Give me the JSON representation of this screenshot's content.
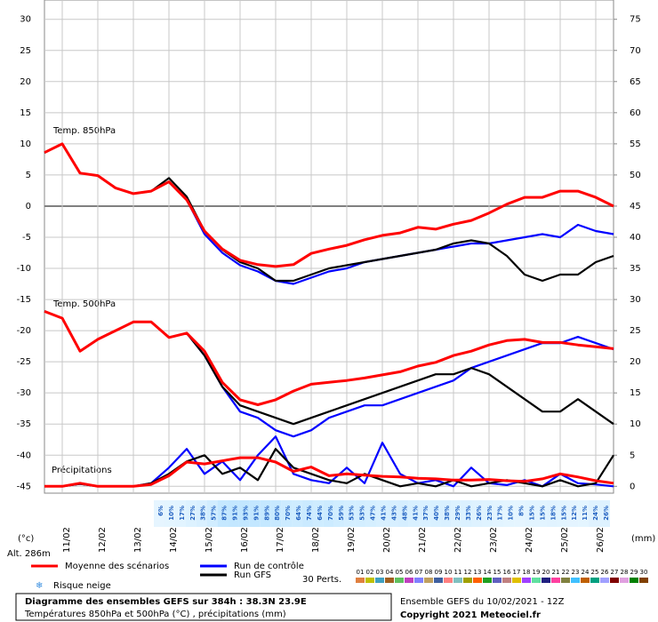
{
  "chart_data": {
    "type": "line",
    "title": "Diagramme des ensembles GEFS sur 384h : 38.3N 23.9E",
    "subtitle": "Températures 850hPa et 500hPa (°C) , précipitations (mm)",
    "ylabel": "(°c)",
    "y2label": "(mm)",
    "annotations": [
      "Temp. 850hPa",
      "Temp. 500hPa",
      "Précipitations",
      "Alt. 286m",
      "Ensemble GEFS du 10/02/2021 - 12Z",
      "Copyright 2021 Meteociel.fr"
    ],
    "x": [
      0,
      12,
      24,
      36,
      48,
      60,
      72,
      84,
      96,
      108,
      120,
      132,
      144,
      156,
      168,
      180,
      192,
      204,
      216,
      228,
      240,
      252,
      264,
      276,
      288,
      300,
      312,
      324,
      336,
      348,
      360,
      372,
      384
    ],
    "xlim": [
      0,
      384
    ],
    "xticks": [
      {
        "value": 12,
        "label": "11/02"
      },
      {
        "value": 36,
        "label": "12/02"
      },
      {
        "value": 60,
        "label": "13/02"
      },
      {
        "value": 84,
        "label": "14/02"
      },
      {
        "value": 108,
        "label": "15/02"
      },
      {
        "value": 132,
        "label": "16/02"
      },
      {
        "value": 156,
        "label": "17/02"
      },
      {
        "value": 180,
        "label": "18/02"
      },
      {
        "value": 204,
        "label": "19/02"
      },
      {
        "value": 228,
        "label": "20/02"
      },
      {
        "value": 252,
        "label": "21/02"
      },
      {
        "value": 276,
        "label": "22/02"
      },
      {
        "value": 300,
        "label": "23/02"
      },
      {
        "value": 324,
        "label": "24/02"
      },
      {
        "value": 348,
        "label": "25/02"
      },
      {
        "value": 372,
        "label": "26/02"
      }
    ],
    "ylim": [
      -46.1,
      33.1
    ],
    "yticks": [
      -45,
      -40,
      -35,
      -30,
      -25,
      -20,
      -15,
      -10,
      -5,
      0,
      5,
      10,
      15,
      20,
      25,
      30
    ],
    "y2lim": [
      -1.1,
      78.1
    ],
    "y2ticks": [
      0,
      5,
      10,
      15,
      20,
      25,
      30,
      35,
      40,
      45,
      50,
      55,
      60,
      65,
      70,
      75
    ],
    "grid": true,
    "hlines": [
      0
    ],
    "series": [
      {
        "name": "Moyenne des scénarios",
        "color": "#ff0000",
        "values": [
          8.6,
          10.0,
          5.3,
          4.9,
          2.9,
          2.0,
          2.4,
          3.9,
          1.0,
          -4.0,
          -6.9,
          -8.7,
          -9.4,
          -9.7,
          -9.4,
          -7.6,
          -6.9,
          -6.3,
          -5.4,
          -4.7,
          -4.3,
          -3.4,
          -3.7,
          -2.9,
          -2.3,
          -1.1,
          0.3,
          1.4,
          1.4,
          2.4,
          2.4,
          1.4,
          0.0
        ]
      },
      {
        "name": "Run de contrôle",
        "color": "#0000ff",
        "values": [
          8.6,
          10.0,
          5.3,
          4.9,
          2.9,
          2.0,
          2.4,
          3.9,
          1.0,
          -4.5,
          -7.5,
          -9.5,
          -10.5,
          -12,
          -12.5,
          -11.5,
          -10.5,
          -10,
          -9,
          -8.5,
          -8,
          -7.5,
          -7,
          -6.5,
          -6,
          -6,
          -5.5,
          -5,
          -4.5,
          -5,
          -3,
          -4,
          -4.5
        ]
      },
      {
        "name": "Run GFS",
        "color": "#000000",
        "values": [
          8.6,
          10.0,
          5.3,
          4.9,
          2.9,
          2.0,
          2.4,
          4.5,
          1.5,
          -4,
          -7,
          -9,
          -10,
          -12,
          -12,
          -11,
          -10,
          -9.5,
          -9,
          -8.5,
          -8,
          -7.5,
          -7,
          -6,
          -5.5,
          -6,
          -8,
          -11,
          -12,
          -11,
          -11,
          -9,
          -8
        ]
      },
      {
        "name": "Moyenne des scénarios",
        "color": "#ff0000",
        "values": [
          -16.9,
          -18,
          -23.3,
          -21.4,
          -20,
          -18.6,
          -18.6,
          -21.1,
          -20.4,
          -23.3,
          -28.3,
          -31.1,
          -31.9,
          -31.1,
          -29.7,
          -28.6,
          -28.3,
          -28,
          -27.6,
          -27.1,
          -26.6,
          -25.7,
          -25.1,
          -24,
          -23.3,
          -22.3,
          -21.6,
          -21.4,
          -21.9,
          -21.9,
          -22.3,
          -22.6,
          -22.9
        ]
      },
      {
        "name": "Run de contrôle",
        "color": "#0000ff",
        "values": [
          -16.9,
          -18,
          -23.3,
          -21.4,
          -20,
          -18.6,
          -18.6,
          -21.1,
          -20.4,
          -24,
          -29,
          -33,
          -34,
          -36,
          -37,
          -36,
          -34,
          -33,
          -32,
          -32,
          -31,
          -30,
          -29,
          -28,
          -26,
          -25,
          -24,
          -23,
          -22,
          -22,
          -21,
          -22,
          -23
        ]
      },
      {
        "name": "Run GFS",
        "color": "#000000",
        "values": [
          -16.9,
          -18,
          -23.3,
          -21.4,
          -20,
          -18.6,
          -18.6,
          -21.1,
          -20.4,
          -24,
          -29,
          -32,
          -33,
          -34,
          -35,
          -34,
          -33,
          -32,
          -31,
          -30,
          -29,
          -28,
          -27,
          -27,
          -26,
          -27,
          -29,
          -31,
          -33,
          -33,
          -31,
          -33,
          -35
        ]
      },
      {
        "name": "Moyenne des scénarios",
        "color": "#ff0000",
        "axis": "y2",
        "values": [
          0,
          0,
          0.5,
          0,
          0,
          0,
          0.3,
          1.7,
          3.9,
          3.6,
          4.1,
          4.6,
          4.6,
          3.9,
          2.4,
          3.1,
          1.7,
          2.0,
          1.8,
          1.6,
          1.5,
          1.3,
          1.2,
          1.0,
          1.0,
          1.1,
          0.9,
          0.8,
          1.2,
          2.0,
          1.5,
          0.9,
          0.5
        ]
      },
      {
        "name": "Run de contrôle",
        "color": "#0000ff",
        "axis": "y2",
        "values": [
          0,
          0,
          0.4,
          0,
          0,
          0,
          0.5,
          3,
          6,
          2,
          4,
          1,
          5,
          8,
          2,
          1,
          0.5,
          3,
          0.5,
          7,
          2,
          0.5,
          1,
          0,
          3,
          0.5,
          0.2,
          1,
          0,
          2,
          0.5,
          0.3,
          0
        ]
      },
      {
        "name": "Run GFS",
        "color": "#000000",
        "axis": "y2",
        "values": [
          0,
          0,
          0.4,
          0,
          0,
          0,
          0.5,
          2,
          4,
          5,
          2,
          3,
          1,
          6,
          3,
          2,
          1,
          0.5,
          2,
          1,
          0,
          0.5,
          0,
          1,
          0,
          0.5,
          1,
          0.5,
          0,
          1,
          0,
          0.5,
          5
        ]
      }
    ],
    "snow_risk": {
      "name": "Risque neige",
      "color": "#bfe6ff",
      "values": [
        6,
        10,
        17,
        27,
        38,
        57,
        87,
        91,
        93,
        91,
        89,
        80,
        70,
        64,
        74,
        64,
        70,
        59,
        53,
        53,
        47,
        41,
        43,
        48,
        41,
        37,
        40,
        38,
        29,
        33,
        26,
        23,
        17,
        10,
        8,
        15,
        15,
        18,
        15,
        12,
        11,
        24,
        26
      ],
      "value_labels": [
        "6%",
        "10%",
        "17%",
        "27%",
        "38%",
        "57%",
        "87%",
        "91%",
        "93%",
        "91%",
        "89%",
        "80%",
        "70%",
        "64%",
        "74%",
        "64%",
        "70%",
        "59%",
        "53%",
        "53%",
        "47%",
        "41%",
        "43%",
        "48%",
        "41%",
        "37%",
        "40%",
        "38%",
        "29%",
        "33%",
        "26%",
        "23%",
        "17%",
        "10%",
        "8%",
        "15%",
        "15%",
        "18%",
        "15%",
        "12%",
        "11%",
        "24%",
        "26%"
      ]
    },
    "perturbations": {
      "name": "30 Perts.",
      "labels": [
        "01",
        "02",
        "03",
        "04",
        "05",
        "06",
        "07",
        "08",
        "09",
        "10",
        "11",
        "12",
        "13",
        "14",
        "15",
        "16",
        "17",
        "18",
        "19",
        "20",
        "21",
        "22",
        "23",
        "24",
        "25",
        "26",
        "27",
        "28",
        "29",
        "30"
      ],
      "colors": [
        "#e08040",
        "#c0c000",
        "#40a0c0",
        "#a06020",
        "#60c060",
        "#c040c0",
        "#8080ff",
        "#c0a060",
        "#4060a0",
        "#ff8080",
        "#80c0c0",
        "#a0a000",
        "#ff6000",
        "#20a020",
        "#6060c0",
        "#c08080",
        "#e0c000",
        "#a040ff",
        "#60e0a0",
        "#202080",
        "#ff40a0",
        "#808040",
        "#40c0ff",
        "#c06000",
        "#00a080",
        "#a0a0ff",
        "#800000",
        "#e0a0e0",
        "#008000",
        "#804000"
      ]
    }
  }
}
